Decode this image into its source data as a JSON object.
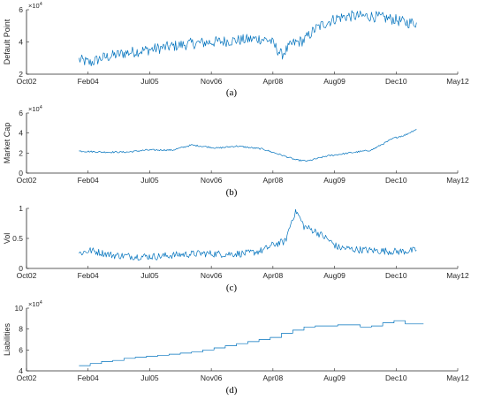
{
  "chart_data": [
    {
      "id": "a",
      "type": "line",
      "caption": "(a)",
      "ylabel": "Default Point",
      "y_exponent": "×10",
      "y_exponent_power": "4",
      "xlim": [
        "2002-10",
        "2012-05"
      ],
      "ylim": [
        2,
        6
      ],
      "yticks": [
        "2",
        "4",
        "6"
      ],
      "xticks": [
        "Oct02",
        "Feb04",
        "Jul05",
        "Nov06",
        "Apr08",
        "Aug09",
        "Dec10",
        "May12"
      ],
      "series": [
        {
          "color": "#0072bd",
          "noise": 0.35,
          "x": [
            "2003-12",
            "2004-03",
            "2004-06",
            "2004-12",
            "2005-06",
            "2005-12",
            "2006-06",
            "2006-12",
            "2007-06",
            "2007-12",
            "2008-03",
            "2008-06",
            "2008-09",
            "2008-12",
            "2009-03",
            "2009-06",
            "2009-09",
            "2009-12",
            "2010-06",
            "2010-12",
            "2011-03",
            "2011-06"
          ],
          "y": [
            2.9,
            2.7,
            3.0,
            3.3,
            3.5,
            3.7,
            3.9,
            4.0,
            4.1,
            4.2,
            4.1,
            3.2,
            3.9,
            4.1,
            4.8,
            5.2,
            5.5,
            5.6,
            5.6,
            5.4,
            5.2,
            5.2
          ]
        }
      ]
    },
    {
      "id": "b",
      "type": "line",
      "caption": "(b)",
      "ylabel": "Market Cap",
      "y_exponent": "×10",
      "y_exponent_power": "4",
      "xlim": [
        "2002-10",
        "2012-05"
      ],
      "ylim": [
        0,
        6
      ],
      "yticks": [
        "0",
        "2",
        "4",
        "6"
      ],
      "xticks": [
        "Oct02",
        "Feb04",
        "Jul05",
        "Nov06",
        "Apr08",
        "Aug09",
        "Dec10",
        "May12"
      ],
      "series": [
        {
          "color": "#0072bd",
          "noise": 0.08,
          "x": [
            "2003-12",
            "2004-06",
            "2005-01",
            "2005-06",
            "2006-01",
            "2006-06",
            "2007-01",
            "2007-06",
            "2008-01",
            "2008-06",
            "2008-10",
            "2009-01",
            "2009-06",
            "2009-12",
            "2010-06",
            "2010-12",
            "2011-03",
            "2011-06"
          ],
          "y": [
            2.2,
            2.1,
            2.1,
            2.3,
            2.3,
            2.8,
            2.5,
            2.7,
            2.4,
            1.8,
            1.3,
            1.2,
            1.7,
            2.0,
            2.3,
            3.5,
            3.8,
            4.4
          ]
        }
      ]
    },
    {
      "id": "c",
      "type": "line",
      "caption": "(c)",
      "ylabel": "Vol",
      "y_exponent": "",
      "y_exponent_power": "",
      "xlim": [
        "2002-10",
        "2012-05"
      ],
      "ylim": [
        0,
        1
      ],
      "yticks": [
        "0",
        "0.5",
        "1"
      ],
      "xticks": [
        "Oct02",
        "Feb04",
        "Jul05",
        "Nov06",
        "Apr08",
        "Aug09",
        "Dec10",
        "May12"
      ],
      "series": [
        {
          "color": "#0072bd",
          "noise": 0.06,
          "x": [
            "2003-12",
            "2004-03",
            "2004-09",
            "2005-03",
            "2005-09",
            "2006-03",
            "2006-09",
            "2007-03",
            "2007-09",
            "2008-01",
            "2008-04",
            "2008-07",
            "2008-09",
            "2008-10",
            "2008-12",
            "2009-03",
            "2009-06",
            "2009-09",
            "2010-01",
            "2010-06",
            "2011-01",
            "2011-06"
          ],
          "y": [
            0.25,
            0.3,
            0.22,
            0.2,
            0.2,
            0.23,
            0.25,
            0.24,
            0.25,
            0.3,
            0.4,
            0.45,
            0.85,
            0.95,
            0.7,
            0.62,
            0.5,
            0.35,
            0.32,
            0.3,
            0.28,
            0.3
          ]
        }
      ]
    },
    {
      "id": "d",
      "type": "line",
      "caption": "(d)",
      "ylabel": "Liabilities",
      "y_exponent": "×10",
      "y_exponent_power": "4",
      "xlim": [
        "2002-10",
        "2012-05"
      ],
      "ylim": [
        4,
        10
      ],
      "yticks": [
        "4",
        "6",
        "8",
        "10"
      ],
      "xticks": [
        "Oct02",
        "Feb04",
        "Jul05",
        "Nov06",
        "Apr08",
        "Aug09",
        "Dec10",
        "May12"
      ],
      "series": [
        {
          "color": "#0072bd",
          "noise": 0,
          "step": true,
          "x": [
            "2003-12",
            "2004-03",
            "2004-06",
            "2004-09",
            "2004-12",
            "2005-03",
            "2005-06",
            "2005-09",
            "2005-12",
            "2006-03",
            "2006-06",
            "2006-09",
            "2006-12",
            "2007-03",
            "2007-06",
            "2007-09",
            "2007-12",
            "2008-03",
            "2008-06",
            "2008-09",
            "2008-12",
            "2009-03",
            "2009-06",
            "2009-09",
            "2009-12",
            "2010-03",
            "2010-06",
            "2010-09",
            "2010-12",
            "2011-03",
            "2011-06"
          ],
          "y": [
            4.5,
            4.7,
            4.9,
            5.0,
            5.2,
            5.3,
            5.4,
            5.5,
            5.6,
            5.7,
            5.8,
            6.0,
            6.2,
            6.4,
            6.6,
            6.8,
            7.0,
            7.2,
            7.6,
            7.9,
            8.2,
            8.3,
            8.3,
            8.4,
            8.4,
            8.2,
            8.3,
            8.6,
            8.8,
            8.5,
            8.5
          ]
        }
      ]
    }
  ]
}
